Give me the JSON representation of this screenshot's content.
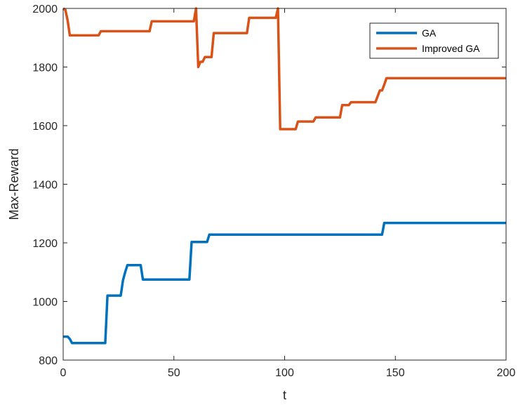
{
  "chart_data": {
    "type": "line",
    "title": "",
    "xlabel": "t",
    "ylabel": "Max-Reward",
    "xlim": [
      0,
      200
    ],
    "ylim": [
      800,
      2000
    ],
    "xticks": [
      0,
      50,
      100,
      150,
      200
    ],
    "yticks": [
      800,
      1000,
      1200,
      1400,
      1600,
      1800,
      2000
    ],
    "grid": false,
    "legend_position": "top-right",
    "series": [
      {
        "name": "GA",
        "color": "#0072BD",
        "x": [
          0,
          2,
          3,
          4,
          5,
          19,
          20,
          26,
          27,
          28,
          29,
          35,
          36,
          57,
          58,
          65,
          66,
          144,
          145,
          200
        ],
        "y": [
          880,
          880,
          872,
          858,
          858,
          858,
          1020,
          1020,
          1072,
          1100,
          1124,
          1124,
          1075,
          1075,
          1203,
          1203,
          1228,
          1228,
          1268,
          1268
        ]
      },
      {
        "name": "Improved GA",
        "color": "#D95319",
        "x": [
          0,
          1,
          2,
          3,
          16,
          17,
          39,
          40,
          59,
          60,
          61,
          62,
          63,
          64,
          65,
          67,
          68,
          83,
          84,
          96,
          97,
          98,
          100,
          105,
          106,
          113,
          114,
          125,
          126,
          129,
          130,
          141,
          143,
          144,
          145,
          146,
          200
        ],
        "y": [
          2000,
          1995,
          1960,
          1908,
          1908,
          1922,
          1922,
          1956,
          1956,
          2000,
          1800,
          1818,
          1818,
          1834,
          1834,
          1834,
          1916,
          1916,
          1968,
          1968,
          2000,
          1588,
          1588,
          1588,
          1614,
          1614,
          1628,
          1628,
          1670,
          1670,
          1680,
          1680,
          1720,
          1720,
          1740,
          1762,
          1762
        ]
      }
    ]
  }
}
